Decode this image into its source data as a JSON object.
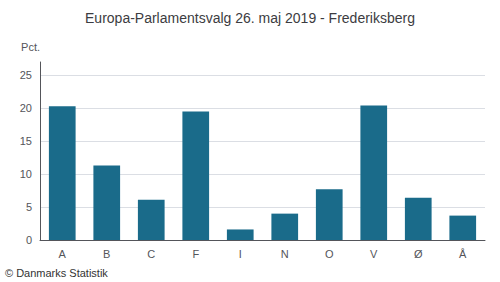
{
  "chart_data": {
    "type": "bar",
    "title": "Europa-Parlamentsvalg 26. maj 2019 - Frederiksberg",
    "ylabel": "Pct.",
    "annotations": [
      "© Danmarks Statistik"
    ],
    "categories": [
      "A",
      "B",
      "C",
      "F",
      "I",
      "N",
      "O",
      "V",
      "Ø",
      "Å"
    ],
    "values": [
      20.3,
      11.3,
      6.1,
      19.5,
      1.6,
      4.0,
      7.7,
      20.4,
      6.4,
      3.7
    ],
    "color": "#1a6b8a",
    "ylim": [
      0,
      27
    ],
    "yticks": [
      0,
      5,
      10,
      15,
      20,
      25
    ],
    "grid": true
  }
}
